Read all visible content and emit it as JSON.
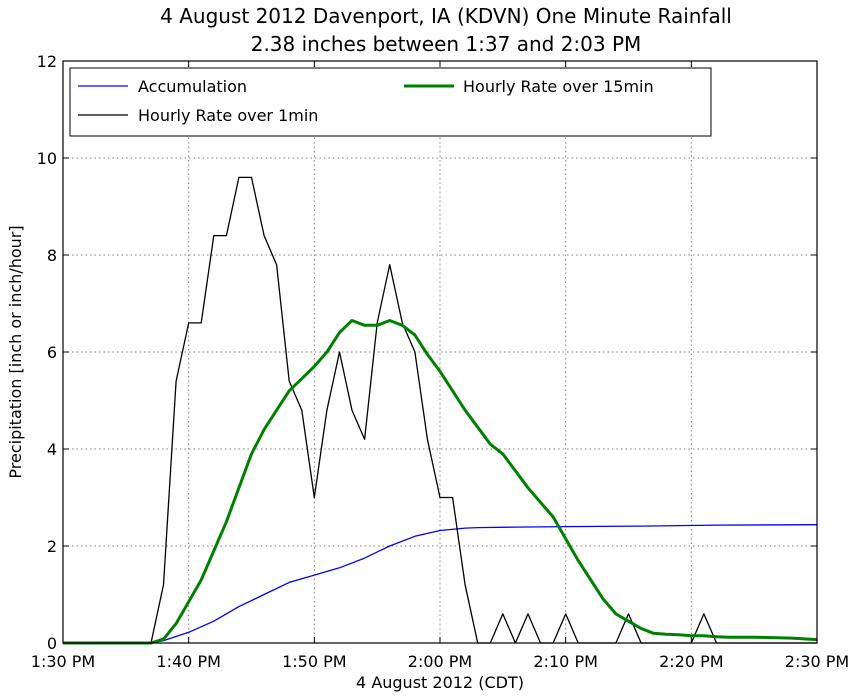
{
  "chart_data": {
    "type": "line",
    "title": "4 August 2012 Davenport, IA (KDVN) One Minute Rainfall",
    "subtitle": "2.38 inches between 1:37 and 2:03 PM",
    "xlabel": "4 August 2012 (CDT)",
    "ylabel": "Precipitation [inch or inch/hour]",
    "xlim": [
      "1:30 PM",
      "2:30 PM"
    ],
    "ylim": [
      0,
      12
    ],
    "grid": true,
    "legend_position": "top-left",
    "x_tick_labels": [
      "1:30 PM",
      "1:40 PM",
      "1:50 PM",
      "2:00 PM",
      "2:10 PM",
      "2:20 PM",
      "2:30 PM"
    ],
    "y_tick_labels": [
      "0",
      "2",
      "4",
      "6",
      "8",
      "10",
      "12"
    ],
    "series": [
      {
        "name": "Accumulation",
        "color": "#0000ff",
        "x": [
          "1:30 PM",
          "1:37 PM",
          "1:38 PM",
          "1:40 PM",
          "1:42 PM",
          "1:44 PM",
          "1:46 PM",
          "1:48 PM",
          "1:50 PM",
          "1:52 PM",
          "1:54 PM",
          "1:56 PM",
          "1:58 PM",
          "2:00 PM",
          "2:02 PM",
          "2:03 PM",
          "2:06 PM",
          "2:10 PM",
          "2:16 PM",
          "2:22 PM",
          "2:30 PM"
        ],
        "values": [
          0,
          0,
          0.05,
          0.22,
          0.45,
          0.75,
          1.0,
          1.25,
          1.4,
          1.55,
          1.75,
          2.0,
          2.2,
          2.32,
          2.37,
          2.38,
          2.39,
          2.4,
          2.41,
          2.43,
          2.44
        ]
      },
      {
        "name": "Hourly Rate over 1min",
        "color": "#000000",
        "x": [
          "1:30 PM",
          "1:37 PM",
          "1:38 PM",
          "1:39 PM",
          "1:40 PM",
          "1:41 PM",
          "1:42 PM",
          "1:43 PM",
          "1:44 PM",
          "1:45 PM",
          "1:46 PM",
          "1:47 PM",
          "1:48 PM",
          "1:49 PM",
          "1:50 PM",
          "1:51 PM",
          "1:52 PM",
          "1:53 PM",
          "1:54 PM",
          "1:55 PM",
          "1:56 PM",
          "1:57 PM",
          "1:58 PM",
          "1:59 PM",
          "2:00 PM",
          "2:01 PM",
          "2:02 PM",
          "2:03 PM",
          "2:04 PM",
          "2:05 PM",
          "2:06 PM",
          "2:07 PM",
          "2:08 PM",
          "2:09 PM",
          "2:10 PM",
          "2:11 PM",
          "2:12 PM",
          "2:13 PM",
          "2:14 PM",
          "2:15 PM",
          "2:16 PM",
          "2:17 PM",
          "2:18 PM",
          "2:19 PM",
          "2:20 PM",
          "2:21 PM",
          "2:22 PM",
          "2:23 PM",
          "2:30 PM"
        ],
        "values": [
          0,
          0,
          1.2,
          5.4,
          6.6,
          6.6,
          8.4,
          8.4,
          9.6,
          9.6,
          8.4,
          7.8,
          5.4,
          4.8,
          3.0,
          4.8,
          6.0,
          4.8,
          4.2,
          6.6,
          7.8,
          6.6,
          6.0,
          4.2,
          3.0,
          3.0,
          1.2,
          0,
          0,
          0.6,
          0,
          0.6,
          0,
          0,
          0.6,
          0,
          0,
          0,
          0,
          0.6,
          0,
          0,
          0,
          0,
          0,
          0.6,
          0,
          0,
          0
        ]
      },
      {
        "name": "Hourly Rate over 15min",
        "color": "#008000",
        "x": [
          "1:30 PM",
          "1:37 PM",
          "1:38 PM",
          "1:39 PM",
          "1:40 PM",
          "1:41 PM",
          "1:42 PM",
          "1:43 PM",
          "1:44 PM",
          "1:45 PM",
          "1:46 PM",
          "1:47 PM",
          "1:48 PM",
          "1:49 PM",
          "1:50 PM",
          "1:51 PM",
          "1:52 PM",
          "1:53 PM",
          "1:54 PM",
          "1:55 PM",
          "1:56 PM",
          "1:57 PM",
          "1:58 PM",
          "1:59 PM",
          "2:00 PM",
          "2:01 PM",
          "2:02 PM",
          "2:03 PM",
          "2:04 PM",
          "2:05 PM",
          "2:06 PM",
          "2:07 PM",
          "2:08 PM",
          "2:09 PM",
          "2:10 PM",
          "2:11 PM",
          "2:12 PM",
          "2:13 PM",
          "2:14 PM",
          "2:15 PM",
          "2:16 PM",
          "2:17 PM",
          "2:18 PM",
          "2:19 PM",
          "2:20 PM",
          "2:21 PM",
          "2:22 PM",
          "2:23 PM",
          "2:25 PM",
          "2:28 PM",
          "2:30 PM"
        ],
        "values": [
          0,
          0,
          0.08,
          0.4,
          0.85,
          1.3,
          1.9,
          2.5,
          3.2,
          3.9,
          4.4,
          4.8,
          5.2,
          5.45,
          5.7,
          6.0,
          6.4,
          6.65,
          6.55,
          6.55,
          6.65,
          6.55,
          6.35,
          5.95,
          5.6,
          5.2,
          4.8,
          4.45,
          4.1,
          3.9,
          3.55,
          3.2,
          2.9,
          2.6,
          2.15,
          1.7,
          1.3,
          0.9,
          0.6,
          0.45,
          0.3,
          0.2,
          0.18,
          0.17,
          0.15,
          0.15,
          0.13,
          0.12,
          0.12,
          0.1,
          0.07
        ]
      }
    ]
  }
}
